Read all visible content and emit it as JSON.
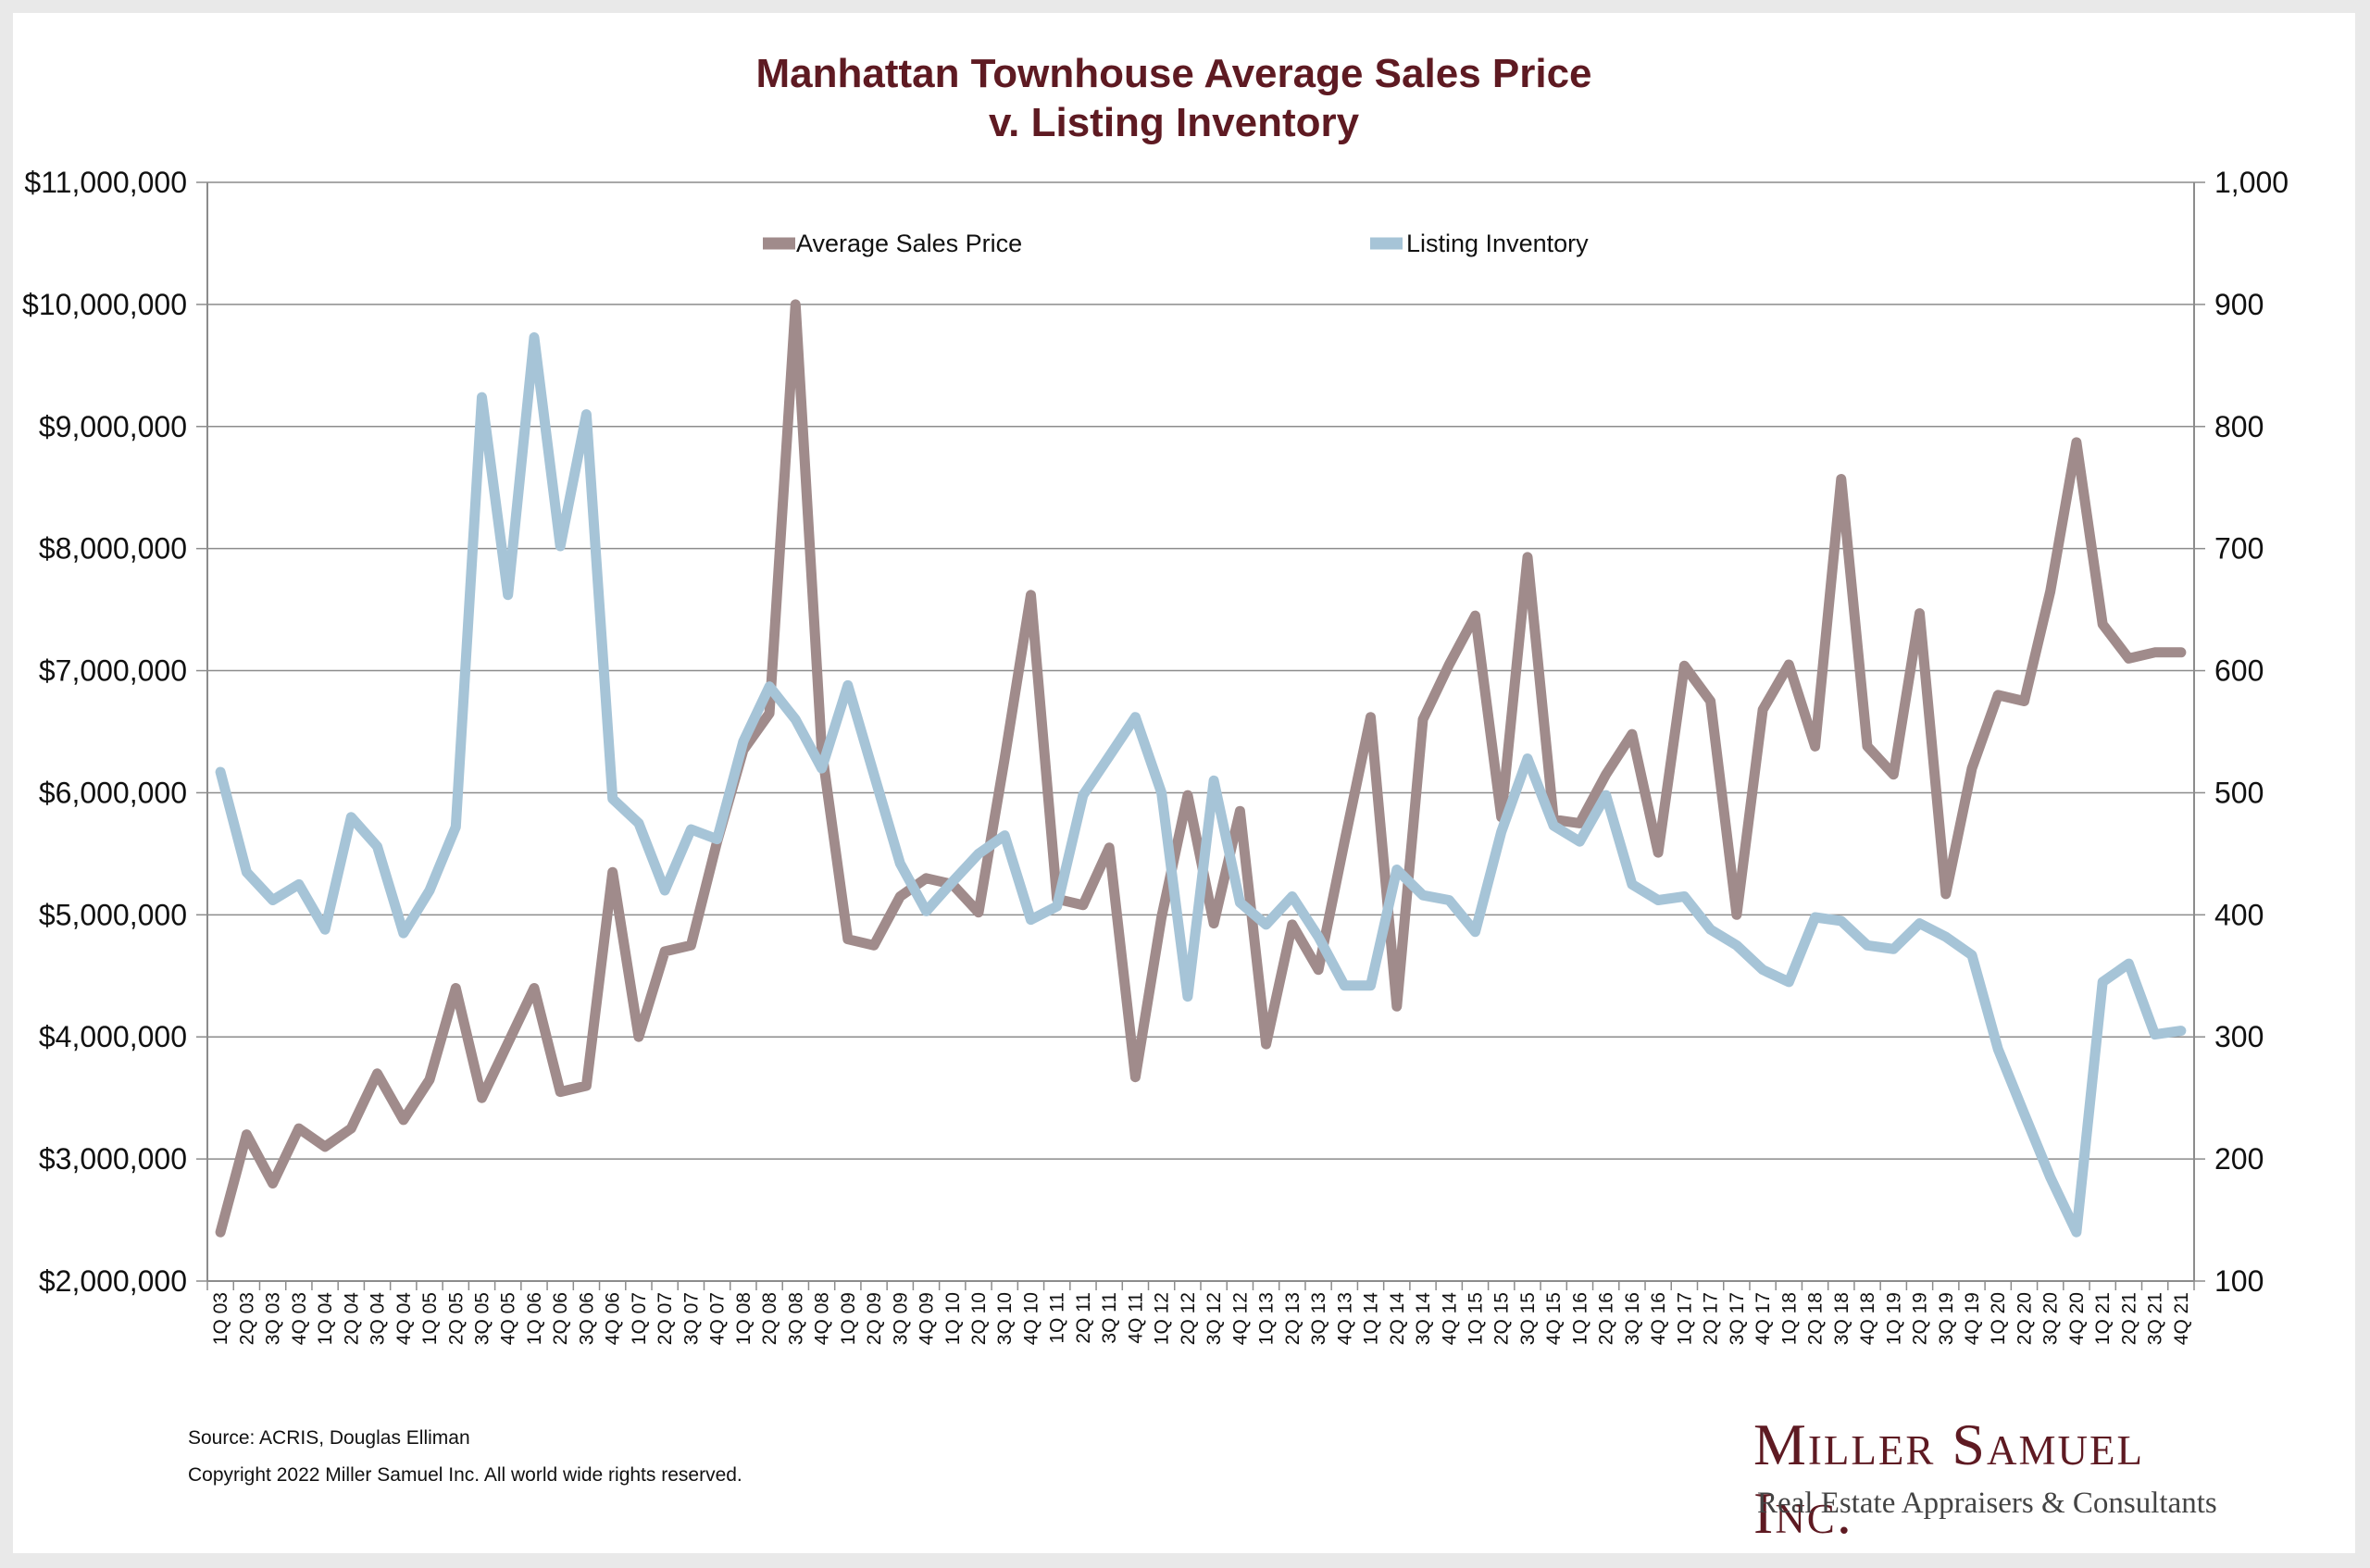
{
  "chart_data": {
    "type": "line",
    "title": [
      "Manhattan Townhouse Average Sales Price",
      "v. Listing Inventory"
    ],
    "categories": [
      "1Q 03",
      "2Q 03",
      "3Q 03",
      "4Q 03",
      "1Q 04",
      "2Q 04",
      "3Q 04",
      "4Q 04",
      "1Q 05",
      "2Q 05",
      "3Q 05",
      "4Q 05",
      "1Q 06",
      "2Q 06",
      "3Q 06",
      "4Q 06",
      "1Q 07",
      "2Q 07",
      "3Q 07",
      "4Q 07",
      "1Q 08",
      "2Q 08",
      "3Q 08",
      "4Q 08",
      "1Q 09",
      "2Q 09",
      "3Q 09",
      "4Q 09",
      "1Q 10",
      "2Q 10",
      "3Q 10",
      "4Q 10",
      "1Q 11",
      "2Q 11",
      "3Q 11",
      "4Q 11",
      "1Q 12",
      "2Q 12",
      "3Q 12",
      "4Q 12",
      "1Q 13",
      "2Q 13",
      "3Q 13",
      "4Q 13",
      "1Q 14",
      "2Q 14",
      "3Q 14",
      "4Q 14",
      "1Q 15",
      "2Q 15",
      "3Q 15",
      "4Q 15",
      "1Q 16",
      "2Q 16",
      "3Q 16",
      "4Q 16",
      "1Q 17",
      "2Q 17",
      "3Q 17",
      "4Q 17",
      "1Q 18",
      "2Q 18",
      "3Q 18",
      "4Q 18",
      "1Q 19",
      "2Q 19",
      "3Q 19",
      "4Q 19",
      "1Q 20",
      "2Q 20",
      "3Q 20",
      "4Q 20",
      "1Q 21",
      "2Q 21",
      "3Q 21",
      "4Q 21"
    ],
    "series": [
      {
        "name": "Average Sales Price",
        "axis": "left",
        "color": "#a08b8b",
        "values": [
          2400000,
          3200000,
          2800000,
          3250000,
          3100000,
          3250000,
          3700000,
          3320000,
          3650000,
          4400000,
          3500000,
          3950000,
          4400000,
          3550000,
          3600000,
          5350000,
          4000000,
          4700000,
          4750000,
          5600000,
          6350000,
          6650000,
          10000000,
          6350000,
          4800000,
          4750000,
          5150000,
          5300000,
          5250000,
          5020000,
          6280000,
          7620000,
          5130000,
          5080000,
          5550000,
          3670000,
          4980000,
          5980000,
          4930000,
          5850000,
          3940000,
          4920000,
          4550000,
          5600000,
          6620000,
          4250000,
          6600000,
          7050000,
          7450000,
          5800000,
          7930000,
          5780000,
          5750000,
          6150000,
          6480000,
          5510000,
          7040000,
          6750000,
          5000000,
          6680000,
          7050000,
          6380000,
          8570000,
          6380000,
          6150000,
          7470000,
          5170000,
          6200000,
          6800000,
          6750000,
          7650000,
          8870000,
          7380000,
          7100000,
          7150000,
          7150000
        ]
      },
      {
        "name": "Listing Inventory",
        "axis": "right",
        "color": "#a6c4d7",
        "values": [
          517,
          435,
          412,
          425,
          388,
          480,
          456,
          385,
          420,
          472,
          824,
          662,
          873,
          702,
          810,
          495,
          475,
          420,
          470,
          462,
          542,
          587,
          560,
          520,
          588,
          515,
          442,
          403,
          427,
          450,
          465,
          396,
          407,
          498,
          530,
          562,
          500,
          333,
          510,
          410,
          392,
          415,
          382,
          342,
          342,
          437,
          416,
          412,
          386,
          468,
          528,
          473,
          460,
          498,
          425,
          412,
          415,
          388,
          375,
          355,
          345,
          398,
          395,
          375,
          372,
          393,
          382,
          367,
          290,
          237,
          185,
          140,
          345,
          360,
          302,
          305
        ]
      }
    ],
    "y_left": {
      "min": 2000000,
      "max": 11000000,
      "step": 1000000,
      "tick_labels": [
        "$2,000,000",
        "$3,000,000",
        "$4,000,000",
        "$5,000,000",
        "$6,000,000",
        "$7,000,000",
        "$8,000,000",
        "$9,000,000",
        "$10,000,000",
        "$11,000,000"
      ]
    },
    "y_right": {
      "min": 100,
      "max": 1000,
      "step": 100,
      "tick_labels": [
        "100",
        "200",
        "300",
        "400",
        "500",
        "600",
        "700",
        "800",
        "900",
        "1,000"
      ]
    },
    "grid": true,
    "legend_position": "top"
  },
  "footer": {
    "source": "Source: ACRIS, Douglas Elliman",
    "copyright": "Copyright 2022 Miller Samuel Inc.  All world wide rights reserved."
  },
  "logo": {
    "name": "Miller Samuel Inc.",
    "tagline": "Real Estate Appraisers & Consultants"
  }
}
